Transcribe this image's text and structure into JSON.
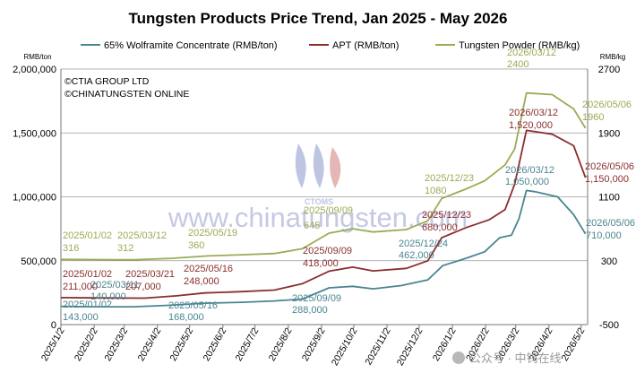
{
  "chart_data": {
    "type": "line",
    "title": "Tungsten Products Price Trend, Jan 2025 - May 2026",
    "y_left_unit": "RMB/ton",
    "y_right_unit": "RMB/kg",
    "y_left_lim": [
      0,
      2000000
    ],
    "y_right_lim": [
      -500,
      2700
    ],
    "y_left_ticks": [
      "0",
      "500,000",
      "1,000,000",
      "1,500,000",
      "2,000,000"
    ],
    "y_right_ticks": [
      "-500",
      "300",
      "1100",
      "1900",
      "2700"
    ],
    "x_tick_labels": [
      "2025/1/2",
      "2025/2/2",
      "2025/3/2",
      "2025/4/2",
      "2025/5/2",
      "2025/6/2",
      "2025/7/2",
      "2025/8/2",
      "2025/9/2",
      "2025/10/2",
      "2025/11/2",
      "2025/12/2",
      "2026/1/2",
      "2026/2/2",
      "2026/3/2",
      "2026/4/2",
      "2026/5/2"
    ],
    "x_range": [
      "2025/01/02",
      "2026/05/08"
    ],
    "grid": "horizontal",
    "legend_position": "top",
    "copyright_lines": [
      "©CTIA GROUP LTD",
      "©CHINATUNGSTEN ONLINE"
    ],
    "watermark": {
      "text": "www.chinatungsten.com",
      "logo_text": "CTOMS"
    },
    "footer_badge": "公众号 · 中钨在线",
    "series": [
      {
        "name": "65% Wolframite Concentrate (RMB/ton)",
        "color": "#4a8591",
        "axis": "left",
        "points": [
          [
            "2025/01/02",
            143000
          ],
          [
            "2025/02/02",
            140000
          ],
          [
            "2025/03/11",
            140000
          ],
          [
            "2025/04/10",
            150000
          ],
          [
            "2025/05/16",
            168000
          ],
          [
            "2025/06/20",
            175000
          ],
          [
            "2025/07/20",
            185000
          ],
          [
            "2025/08/15",
            200000
          ],
          [
            "2025/09/09",
            288000
          ],
          [
            "2025/10/01",
            300000
          ],
          [
            "2025/10/20",
            280000
          ],
          [
            "2025/11/15",
            305000
          ],
          [
            "2025/12/10",
            350000
          ],
          [
            "2025/12/24",
            462000
          ],
          [
            "2026/01/15",
            520000
          ],
          [
            "2026/02/01",
            570000
          ],
          [
            "2026/02/15",
            680000
          ],
          [
            "2026/02/26",
            700000
          ],
          [
            "2026/03/05",
            830000
          ],
          [
            "2026/03/12",
            1050000
          ],
          [
            "2026/03/20",
            1040000
          ],
          [
            "2026/04/10",
            1000000
          ],
          [
            "2026/04/25",
            860000
          ],
          [
            "2026/05/06",
            710000
          ]
        ],
        "annotations": [
          {
            "date": "2025/01/02",
            "label": "2025/01/02",
            "value_label": "143,000"
          },
          {
            "date": "2025/03/11",
            "label": "2025/03/11",
            "value_label": "140,000"
          },
          {
            "date": "2025/05/16",
            "label": "2025/05/16",
            "value_label": "168,000"
          },
          {
            "date": "2025/09/09",
            "label": "2025/09/09",
            "value_label": "288,000"
          },
          {
            "date": "2025/12/24",
            "label": "2025/12/24",
            "value_label": "462,000"
          },
          {
            "date": "2026/03/12",
            "label": "2026/03/12",
            "value_label": "1,050,000"
          },
          {
            "date": "2026/05/06",
            "label": "2026/05/06",
            "value_label": "710,000"
          }
        ]
      },
      {
        "name": "APT (RMB/ton)",
        "color": "#8b2e2e",
        "axis": "left",
        "points": [
          [
            "2025/01/02",
            211000
          ],
          [
            "2025/02/02",
            209000
          ],
          [
            "2025/03/21",
            207000
          ],
          [
            "2025/04/20",
            225000
          ],
          [
            "2025/05/16",
            248000
          ],
          [
            "2025/06/20",
            258000
          ],
          [
            "2025/07/20",
            270000
          ],
          [
            "2025/08/15",
            320000
          ],
          [
            "2025/09/09",
            418000
          ],
          [
            "2025/10/01",
            450000
          ],
          [
            "2025/10/20",
            420000
          ],
          [
            "2025/11/20",
            440000
          ],
          [
            "2025/12/10",
            500000
          ],
          [
            "2025/12/23",
            680000
          ],
          [
            "2026/01/15",
            760000
          ],
          [
            "2026/02/05",
            820000
          ],
          [
            "2026/02/20",
            900000
          ],
          [
            "2026/03/01",
            1100000
          ],
          [
            "2026/03/12",
            1520000
          ],
          [
            "2026/04/05",
            1490000
          ],
          [
            "2026/04/25",
            1400000
          ],
          [
            "2026/05/06",
            1150000
          ]
        ],
        "annotations": [
          {
            "date": "2025/01/02",
            "label": "2025/01/02",
            "value_label": "211,000"
          },
          {
            "date": "2025/03/21",
            "label": "2025/03/21",
            "value_label": "207,000"
          },
          {
            "date": "2025/05/16",
            "label": "2025/05/16",
            "value_label": "248,000"
          },
          {
            "date": "2025/09/09",
            "label": "2025/09/09",
            "value_label": "418,000"
          },
          {
            "date": "2025/12/23",
            "label": "2025/12/23",
            "value_label": "680,000"
          },
          {
            "date": "2026/03/12",
            "label": "2026/03/12",
            "value_label": "1,520,000"
          },
          {
            "date": "2026/05/06",
            "label": "2026/05/06",
            "value_label": "1,150,000"
          }
        ]
      },
      {
        "name": "Tungsten Powder (RMB/kg)",
        "color": "#9bab55",
        "axis": "right",
        "points": [
          [
            "2025/01/02",
            316
          ],
          [
            "2025/02/02",
            314
          ],
          [
            "2025/03/12",
            312
          ],
          [
            "2025/04/15",
            330
          ],
          [
            "2025/05/19",
            360
          ],
          [
            "2025/06/20",
            375
          ],
          [
            "2025/07/20",
            390
          ],
          [
            "2025/08/15",
            450
          ],
          [
            "2025/09/09",
            645
          ],
          [
            "2025/10/01",
            700
          ],
          [
            "2025/10/20",
            660
          ],
          [
            "2025/11/20",
            690
          ],
          [
            "2025/12/10",
            800
          ],
          [
            "2025/12/23",
            1080
          ],
          [
            "2026/01/15",
            1200
          ],
          [
            "2026/02/01",
            1300
          ],
          [
            "2026/02/20",
            1500
          ],
          [
            "2026/03/01",
            1700
          ],
          [
            "2026/03/12",
            2400
          ],
          [
            "2026/04/05",
            2380
          ],
          [
            "2026/04/25",
            2200
          ],
          [
            "2026/05/06",
            1960
          ]
        ],
        "annotations": [
          {
            "date": "2025/01/02",
            "label": "2025/01/02",
            "value_label": "316"
          },
          {
            "date": "2025/03/12",
            "label": "2025/03/12",
            "value_label": "312"
          },
          {
            "date": "2025/05/19",
            "label": "2025/05/19",
            "value_label": "360"
          },
          {
            "date": "2025/09/09",
            "label": "2025/09/09",
            "value_label": "645"
          },
          {
            "date": "2025/12/23",
            "label": "2025/12/23",
            "value_label": "1080"
          },
          {
            "date": "2026/03/12",
            "label": "2026/03/12",
            "value_label": "2400"
          },
          {
            "date": "2026/05/06",
            "label": "2026/05/06",
            "value_label": "1960"
          }
        ]
      }
    ]
  }
}
